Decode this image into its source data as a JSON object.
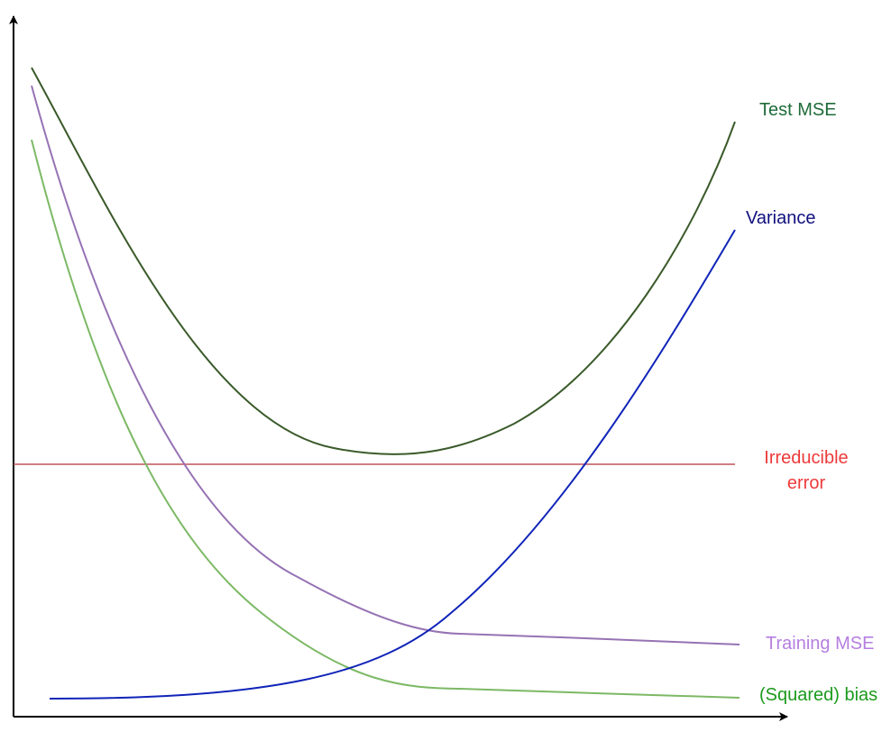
{
  "curves": {
    "test_mse": {
      "label": "Test MSE",
      "line_color": "#3a5a2a",
      "text_color": "#1e6b3a"
    },
    "variance": {
      "label": "Variance",
      "line_color": "#1024b8",
      "text_color": "#10107e"
    },
    "irreducible_error": {
      "label_line1": "Irreducible",
      "label_line2": "error",
      "line_color": "#c0525a",
      "text_color": "#ee3a3a"
    },
    "training_mse": {
      "label": "Training MSE",
      "line_color": "#9673b4",
      "text_color": "#b57ee0"
    },
    "squared_bias": {
      "label": "(Squared) bias",
      "line_color": "#7cb965",
      "text_color": "#1c9a1c"
    }
  },
  "axes": {
    "color": "#000000"
  }
}
